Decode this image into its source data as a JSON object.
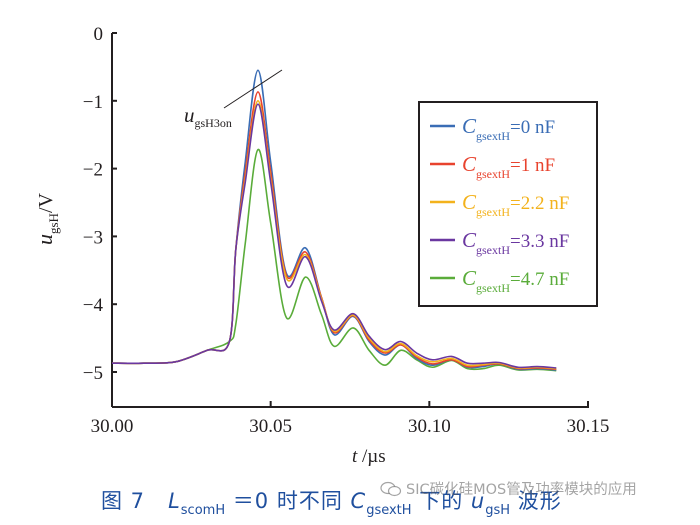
{
  "chart_data": {
    "type": "line",
    "title": "",
    "xlabel": "t /µs",
    "ylabel": "u_gsH/V",
    "xlim": [
      30.0,
      30.15
    ],
    "ylim": [
      -5.5,
      0
    ],
    "x_ticks": [
      "30.00",
      "30.05",
      "30.10",
      "30.15"
    ],
    "y_ticks": [
      "0",
      "−1",
      "−2",
      "−3",
      "−4",
      "−5"
    ],
    "grid": false,
    "legend_position": "upper right",
    "annotation": {
      "text": "u_gsH3on",
      "target": "peak of C_gsextH=0 nF curve",
      "x": 30.046,
      "y": -0.55
    },
    "x": [
      30.0,
      30.01,
      30.02,
      30.03,
      30.037,
      30.039,
      30.042,
      30.046,
      30.05,
      30.055,
      30.061,
      30.066,
      30.07,
      30.076,
      30.081,
      30.086,
      30.091,
      30.096,
      30.101,
      30.107,
      30.112,
      30.117,
      30.122,
      30.128,
      30.134,
      30.14
    ],
    "series": [
      {
        "name": "C_gsextH=0 nF",
        "color": "#3a6db5",
        "values": [
          -4.87,
          -4.87,
          -4.85,
          -4.68,
          -4.55,
          -3.2,
          -1.9,
          -0.55,
          -1.9,
          -3.55,
          -3.17,
          -3.9,
          -4.45,
          -4.18,
          -4.55,
          -4.75,
          -4.6,
          -4.8,
          -4.9,
          -4.82,
          -4.93,
          -4.92,
          -4.88,
          -4.96,
          -4.95,
          -4.97
        ]
      },
      {
        "name": "C_gsextH=1 nF",
        "color": "#e8432e",
        "values": [
          -4.87,
          -4.87,
          -4.85,
          -4.68,
          -4.55,
          -3.2,
          -2.05,
          -0.87,
          -2.05,
          -3.58,
          -3.23,
          -3.9,
          -4.42,
          -4.17,
          -4.53,
          -4.72,
          -4.6,
          -4.78,
          -4.88,
          -4.82,
          -4.92,
          -4.9,
          -4.88,
          -4.95,
          -4.94,
          -4.96
        ]
      },
      {
        "name": "C_gsextH=2.2 nF",
        "color": "#f3b21c",
        "values": [
          -4.87,
          -4.87,
          -4.85,
          -4.68,
          -4.55,
          -3.2,
          -2.15,
          -1.0,
          -2.15,
          -3.62,
          -3.27,
          -3.92,
          -4.4,
          -4.16,
          -4.5,
          -4.7,
          -4.58,
          -4.76,
          -4.85,
          -4.8,
          -4.9,
          -4.89,
          -4.87,
          -4.94,
          -4.93,
          -4.95
        ]
      },
      {
        "name": "C_gsextH=3.3 nF",
        "color": "#6a37a0",
        "values": [
          -4.87,
          -4.87,
          -4.85,
          -4.68,
          -4.55,
          -3.2,
          -2.2,
          -1.05,
          -2.2,
          -3.72,
          -3.3,
          -3.95,
          -4.38,
          -4.14,
          -4.47,
          -4.67,
          -4.55,
          -4.72,
          -4.82,
          -4.77,
          -4.87,
          -4.87,
          -4.86,
          -4.93,
          -4.92,
          -4.94
        ]
      },
      {
        "name": "C_gsextH=4.7 nF",
        "color": "#5aac3a",
        "values": [
          -4.87,
          -4.87,
          -4.85,
          -4.68,
          -4.55,
          -4.3,
          -3.1,
          -1.72,
          -2.8,
          -4.2,
          -3.6,
          -4.15,
          -4.62,
          -4.35,
          -4.68,
          -4.9,
          -4.68,
          -4.82,
          -4.93,
          -4.83,
          -4.95,
          -4.95,
          -4.9,
          -4.97,
          -4.96,
          -4.98
        ]
      }
    ]
  },
  "axes": {
    "y_title_main": "u",
    "y_title_sub": "gsH",
    "y_title_unit": "/V",
    "x_title_main": "t",
    "x_title_unit": " /µs"
  },
  "annotation": {
    "main": "u",
    "sub": "gsH3on"
  },
  "legend": {
    "items": [
      {
        "symbol": "C",
        "sub": "gsextH",
        "value": "=0 nF",
        "color": "#3a6db5"
      },
      {
        "symbol": "C",
        "sub": "gsextH",
        "value": "=1 nF",
        "color": "#e8432e"
      },
      {
        "symbol": "C",
        "sub": "gsextH",
        "value": "=2.2 nF",
        "color": "#f3b21c"
      },
      {
        "symbol": "C",
        "sub": "gsextH",
        "value": "=3.3 nF",
        "color": "#6a37a0"
      },
      {
        "symbol": "C",
        "sub": "gsextH",
        "value": "=4.7 nF",
        "color": "#5aac3a"
      }
    ]
  },
  "caption": {
    "fig": "图 7",
    "L": "L",
    "L_sub": "scomH",
    "eq": "＝0 时不同 ",
    "C": "C",
    "C_sub": "gsextH",
    "mid": " 下的 ",
    "u": "u",
    "u_sub": "gsH",
    "end": " 波形",
    "color": "#1f4f9e"
  },
  "watermark": {
    "text": "SIC碳化硅MOS管及功率模块的应用"
  }
}
